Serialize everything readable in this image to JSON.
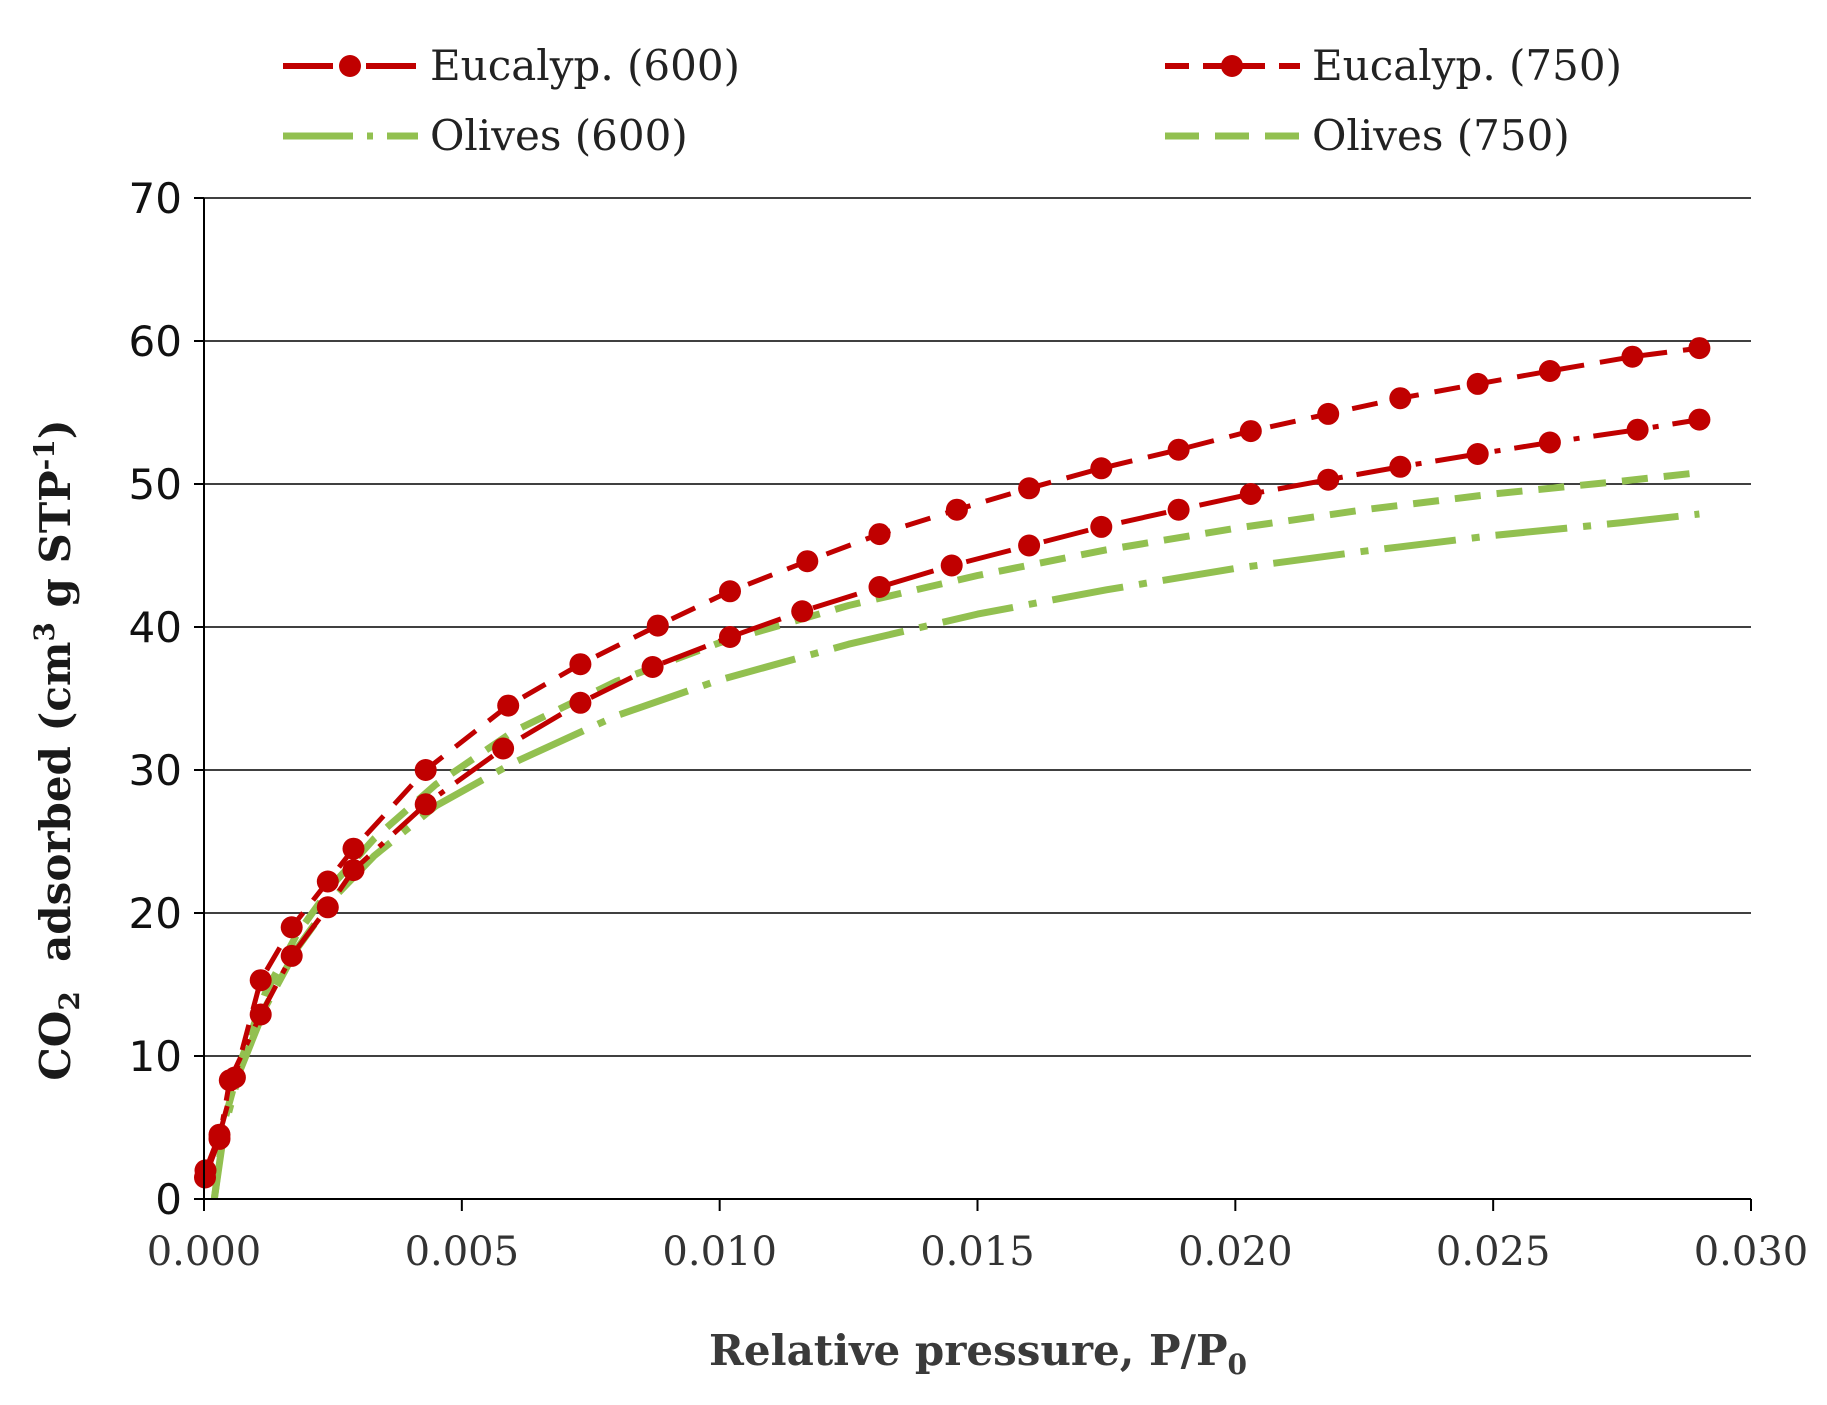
{
  "chart_data": {
    "type": "line",
    "title": "",
    "xlabel": "Relative pressure, P/P",
    "xlabel_sub": "0",
    "ylabel_parts": {
      "p1": "CO",
      "sub": "2",
      "p2": "  adsorbed (cm",
      "sup1": "3",
      "p3": " g STP",
      "sup2": "-1",
      "p4": ")"
    },
    "xlim": [
      0,
      0.03
    ],
    "ylim": [
      0,
      70
    ],
    "xticks": [
      "0.000",
      "0.005",
      "0.010",
      "0.015",
      "0.020",
      "0.025",
      "0.030"
    ],
    "yticks": [
      "0",
      "10",
      "20",
      "30",
      "40",
      "50",
      "60",
      "70"
    ],
    "grid": true,
    "legend_position": "top",
    "series": [
      {
        "name": "Eucalyp. (600)",
        "color": "#c00000",
        "style": "dash-dot",
        "markers": true,
        "points": [
          [
            2e-05,
            1.5
          ],
          [
            0.0003,
            4.2
          ],
          [
            0.0005,
            8.3
          ],
          [
            0.0011,
            12.9
          ],
          [
            0.0017,
            17.0
          ],
          [
            0.0024,
            20.4
          ],
          [
            0.0029,
            23.0
          ],
          [
            0.0043,
            27.6
          ],
          [
            0.0058,
            31.5
          ],
          [
            0.0073,
            34.7
          ],
          [
            0.0087,
            37.2
          ],
          [
            0.0102,
            39.3
          ],
          [
            0.0116,
            41.1
          ],
          [
            0.0131,
            42.8
          ],
          [
            0.0145,
            44.3
          ],
          [
            0.016,
            45.7
          ],
          [
            0.0174,
            47.0
          ],
          [
            0.0189,
            48.2
          ],
          [
            0.0203,
            49.3
          ],
          [
            0.0218,
            50.3
          ],
          [
            0.0232,
            51.2
          ],
          [
            0.0247,
            52.1
          ],
          [
            0.0261,
            52.9
          ],
          [
            0.0278,
            53.8
          ],
          [
            0.029,
            54.5
          ]
        ]
      },
      {
        "name": "Eucalyp. (750)",
        "color": "#c00000",
        "style": "dash",
        "markers": true,
        "points": [
          [
            3e-05,
            2.0
          ],
          [
            0.0003,
            4.5
          ],
          [
            0.0006,
            8.5
          ],
          [
            0.0011,
            15.3
          ],
          [
            0.0017,
            19.0
          ],
          [
            0.0024,
            22.2
          ],
          [
            0.0029,
            24.5
          ],
          [
            0.0043,
            30.0
          ],
          [
            0.0059,
            34.5
          ],
          [
            0.0073,
            37.4
          ],
          [
            0.0088,
            40.1
          ],
          [
            0.0102,
            42.5
          ],
          [
            0.0117,
            44.6
          ],
          [
            0.0131,
            46.5
          ],
          [
            0.0146,
            48.2
          ],
          [
            0.016,
            49.7
          ],
          [
            0.0174,
            51.1
          ],
          [
            0.0189,
            52.4
          ],
          [
            0.0203,
            53.7
          ],
          [
            0.0218,
            54.9
          ],
          [
            0.0232,
            56.0
          ],
          [
            0.0247,
            57.0
          ],
          [
            0.0261,
            57.9
          ],
          [
            0.0277,
            58.9
          ],
          [
            0.029,
            59.5
          ]
        ]
      },
      {
        "name": "Olives (600)",
        "color": "#92c050",
        "style": "long-dash-dot",
        "markers": false,
        "points": [
          [
            0.0002,
            0
          ],
          [
            0.0004,
            5.0
          ],
          [
            0.0007,
            9.0
          ],
          [
            0.0012,
            13.5
          ],
          [
            0.0018,
            17.5
          ],
          [
            0.0025,
            21.0
          ],
          [
            0.0033,
            24.0
          ],
          [
            0.0045,
            27.5
          ],
          [
            0.006,
            30.5
          ],
          [
            0.008,
            33.8
          ],
          [
            0.01,
            36.3
          ],
          [
            0.0125,
            38.8
          ],
          [
            0.015,
            40.9
          ],
          [
            0.0175,
            42.6
          ],
          [
            0.02,
            44.1
          ],
          [
            0.0225,
            45.3
          ],
          [
            0.025,
            46.4
          ],
          [
            0.0275,
            47.3
          ],
          [
            0.029,
            47.9
          ]
        ]
      },
      {
        "name": "Olives (750)",
        "color": "#92c050",
        "style": "dash",
        "markers": false,
        "points": [
          [
            0.0002,
            0
          ],
          [
            0.0004,
            5.5
          ],
          [
            0.0007,
            9.5
          ],
          [
            0.0012,
            14.5
          ],
          [
            0.0018,
            18.5
          ],
          [
            0.0025,
            22.0
          ],
          [
            0.0033,
            25.2
          ],
          [
            0.0045,
            29.0
          ],
          [
            0.006,
            32.7
          ],
          [
            0.008,
            36.2
          ],
          [
            0.01,
            38.9
          ],
          [
            0.0125,
            41.5
          ],
          [
            0.015,
            43.6
          ],
          [
            0.0175,
            45.4
          ],
          [
            0.02,
            46.9
          ],
          [
            0.0225,
            48.2
          ],
          [
            0.025,
            49.3
          ],
          [
            0.0275,
            50.2
          ],
          [
            0.029,
            50.8
          ]
        ]
      }
    ]
  }
}
